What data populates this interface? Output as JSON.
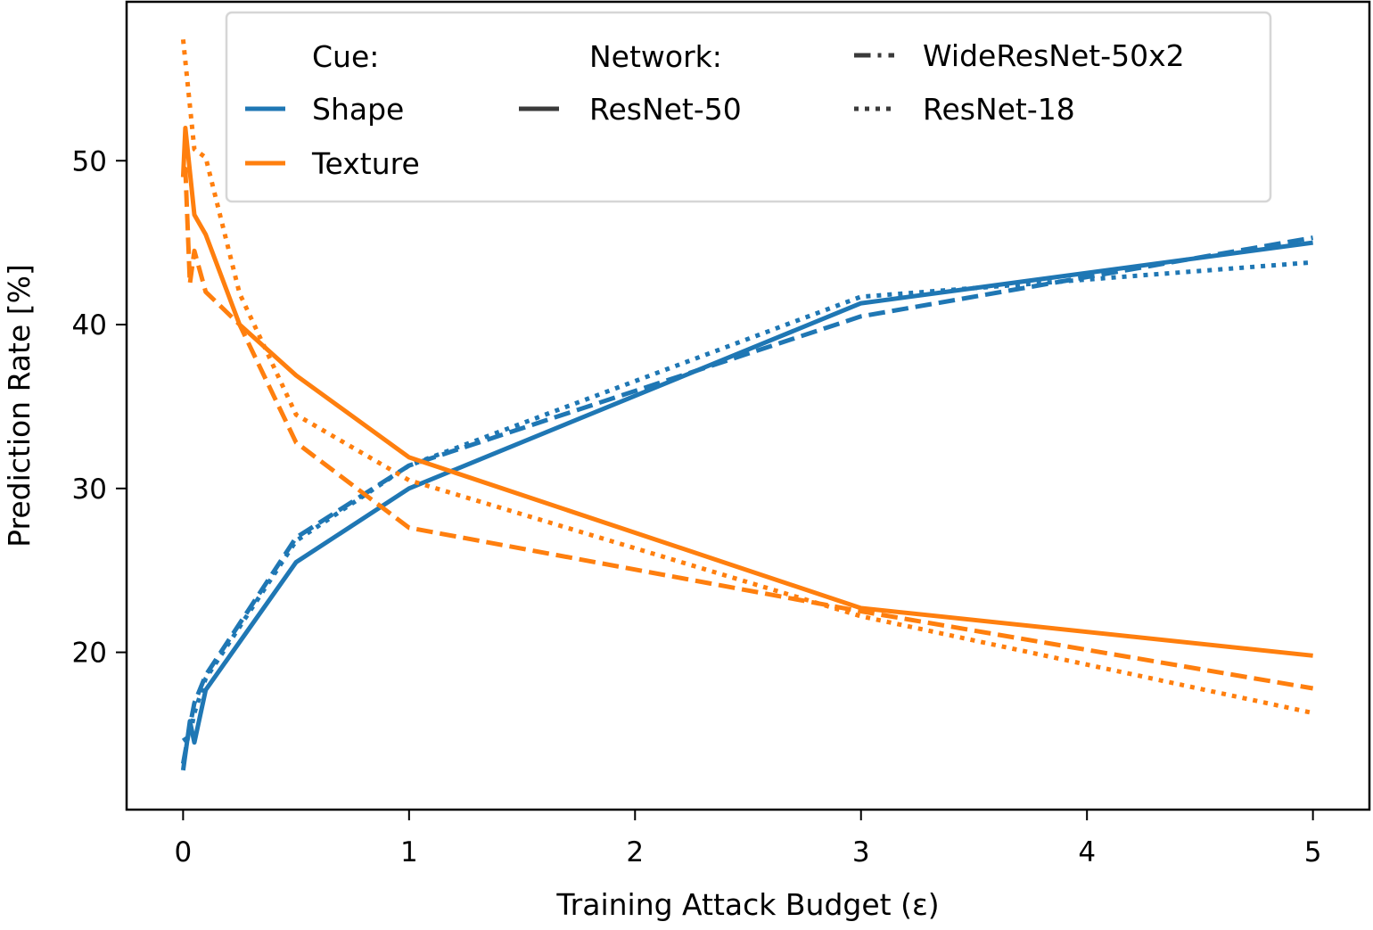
{
  "chart_data": {
    "type": "line",
    "title": "",
    "xlabel": "Training Attack Budget (ε)",
    "ylabel": "Prediction Rate [%]",
    "xlim": [
      -0.25,
      5.25
    ],
    "ylim": [
      10.4,
      59.7
    ],
    "xticks": [
      0,
      1,
      2,
      3,
      4,
      5
    ],
    "xtick_labels": [
      "0",
      "1",
      "2",
      "3",
      "4",
      "5"
    ],
    "yticks": [
      20,
      30,
      40,
      50
    ],
    "ytick_labels": [
      "20",
      "30",
      "40",
      "50"
    ],
    "grid": false,
    "legend": {
      "placement": "top-center",
      "cue_title": "Cue:",
      "network_title": "Network:",
      "cues": [
        {
          "name": "Shape",
          "color": "#1f77b4"
        },
        {
          "name": "Texture",
          "color": "#ff7f0e"
        }
      ],
      "networks": [
        {
          "name": "ResNet-50",
          "style": "solid"
        },
        {
          "name": "WideResNet-50x2",
          "style": "dashed"
        },
        {
          "name": "ResNet-18",
          "style": "dotted"
        }
      ],
      "handle_color": "#3a3a3a"
    },
    "series": [
      {
        "name": "Shape / ResNet-50",
        "cue": "Shape",
        "network": "ResNet-50",
        "color": "#1f77b4",
        "style": "solid",
        "x": [
          0,
          0.03,
          0.05,
          0.1,
          0.5,
          1,
          3,
          5
        ],
        "y": [
          12.8,
          15.8,
          14.5,
          17.7,
          25.5,
          30.0,
          41.3,
          45.0
        ]
      },
      {
        "name": "Shape / WideResNet-50x2",
        "cue": "Shape",
        "network": "WideResNet-50x2",
        "color": "#1f77b4",
        "style": "dashed",
        "x": [
          0,
          0.03,
          0.05,
          0.1,
          0.5,
          1,
          3,
          5
        ],
        "y": [
          13.2,
          15.5,
          16.9,
          18.6,
          27.0,
          31.4,
          40.5,
          45.3
        ]
      },
      {
        "name": "Shape / ResNet-18",
        "cue": "Shape",
        "network": "ResNet-18",
        "color": "#1f77b4",
        "style": "dotted",
        "x": [
          0,
          0.03,
          0.05,
          0.1,
          0.5,
          1,
          3,
          5
        ],
        "y": [
          14.6,
          14.9,
          16.3,
          18.4,
          26.8,
          31.4,
          41.7,
          43.8
        ]
      },
      {
        "name": "Texture / ResNet-50",
        "cue": "Texture",
        "network": "ResNet-50",
        "color": "#ff7f0e",
        "style": "solid",
        "x": [
          0,
          0.01,
          0.05,
          0.1,
          0.25,
          0.5,
          1,
          3,
          5
        ],
        "y": [
          49.0,
          52.0,
          46.7,
          45.5,
          40.0,
          36.9,
          31.9,
          22.7,
          19.8
        ]
      },
      {
        "name": "Texture / WideResNet-50x2",
        "cue": "Texture",
        "network": "WideResNet-50x2",
        "color": "#ff7f0e",
        "style": "dashed",
        "x": [
          0,
          0.01,
          0.03,
          0.05,
          0.1,
          0.25,
          0.5,
          1,
          3,
          5
        ],
        "y": [
          49.5,
          49.5,
          42.5,
          44.5,
          42.0,
          40.0,
          32.8,
          27.6,
          22.5,
          17.8
        ]
      },
      {
        "name": "Texture / ResNet-18",
        "cue": "Texture",
        "network": "ResNet-18",
        "color": "#ff7f0e",
        "style": "dotted",
        "x": [
          0,
          0.05,
          0.1,
          0.25,
          0.5,
          1,
          3,
          5
        ],
        "y": [
          57.4,
          50.7,
          50.2,
          41.9,
          34.5,
          30.5,
          22.2,
          16.3
        ]
      }
    ]
  }
}
